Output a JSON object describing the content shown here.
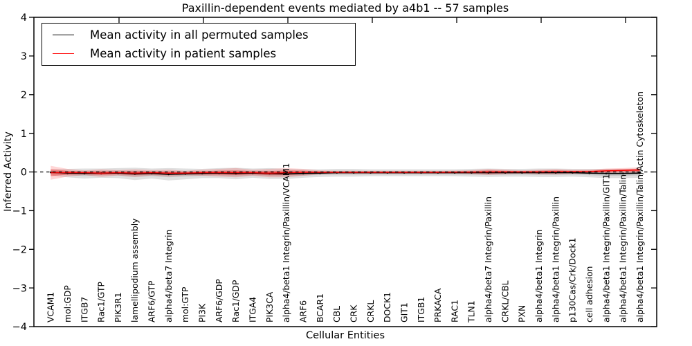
{
  "chart_data": {
    "type": "line",
    "title": "Paxillin-dependent events mediated by a4b1 -- 57 samples",
    "xlabel": "Cellular Entities",
    "ylabel": "Inferred Activity",
    "ylim": [
      -4,
      4
    ],
    "yticks": [
      4,
      3,
      2,
      1,
      0,
      -1,
      -2,
      -3,
      -4
    ],
    "grid": false,
    "zero_line_dashed": true,
    "legend_position": "upper left",
    "categories": [
      "VCAM1",
      "mol:GDP",
      "ITGB7",
      "Rac1/GTP",
      "PIK3R1",
      "lamellipodium assembly",
      "ARF6/GTP",
      "alpha4/beta7 Integrin",
      "mol:GTP",
      "PI3K",
      "ARF6/GDP",
      "Rac1/GDP",
      "ITGA4",
      "PIK3CA",
      "alpha4/beta1 Integrin/Paxillin/VCAM1",
      "ARF6",
      "BCAR1",
      "CBL",
      "CRK",
      "CRKL",
      "DOCK1",
      "GIT1",
      "ITGB1",
      "PRKACA",
      "RAC1",
      "TLN1",
      "alpha4/beta7 Integrin/Paxillin",
      "CRKL/CBL",
      "PXN",
      "alpha4/beta1 Integrin",
      "alpha4/beta1 Integrin/Paxillin",
      "p130Cas/Crk/Dock1",
      "cell adhesion",
      "alpha4/beta1 Integrin/Paxillin/GIT1",
      "alpha4/beta1 Integrin/Paxillin/Talin",
      "alpha4/beta1 Integrin/Paxillin/Talin/Actin Cytoskeleton"
    ],
    "series": [
      {
        "name": "Mean activity in all permuted samples",
        "color": "#000000",
        "values": [
          -0.01,
          -0.03,
          -0.04,
          -0.03,
          -0.03,
          -0.05,
          -0.04,
          -0.06,
          -0.05,
          -0.04,
          -0.03,
          -0.04,
          -0.03,
          -0.04,
          -0.05,
          -0.04,
          -0.03,
          -0.02,
          -0.02,
          -0.02,
          -0.02,
          -0.02,
          -0.02,
          -0.02,
          -0.02,
          -0.02,
          -0.02,
          -0.02,
          -0.02,
          -0.02,
          -0.02,
          -0.02,
          -0.03,
          -0.04,
          -0.04,
          -0.03
        ],
        "band_halfwidth": [
          0.08,
          0.11,
          0.13,
          0.12,
          0.13,
          0.16,
          0.13,
          0.16,
          0.14,
          0.12,
          0.13,
          0.15,
          0.12,
          0.14,
          0.13,
          0.11,
          0.1,
          0.1,
          0.1,
          0.09,
          0.09,
          0.09,
          0.09,
          0.09,
          0.09,
          0.1,
          0.11,
          0.1,
          0.1,
          0.11,
          0.11,
          0.1,
          0.11,
          0.12,
          0.12,
          0.12
        ]
      },
      {
        "name": "Mean activity in patient samples",
        "color": "#ff0000",
        "values": [
          -0.02,
          -0.02,
          -0.02,
          -0.03,
          -0.02,
          -0.03,
          -0.02,
          -0.03,
          -0.03,
          -0.02,
          -0.02,
          -0.02,
          -0.02,
          -0.03,
          -0.02,
          -0.01,
          -0.01,
          -0.01,
          -0.01,
          -0.01,
          -0.01,
          -0.01,
          -0.01,
          -0.01,
          -0.005,
          -0.005,
          0.0,
          0.0,
          0.0,
          0.0,
          0.005,
          0.005,
          0.01,
          0.03,
          0.04,
          0.05
        ],
        "band_halfwidth": [
          0.18,
          0.1,
          0.06,
          0.1,
          0.07,
          0.1,
          0.07,
          0.09,
          0.06,
          0.08,
          0.1,
          0.12,
          0.08,
          0.11,
          0.12,
          0.09,
          0.05,
          0.04,
          0.04,
          0.04,
          0.04,
          0.04,
          0.04,
          0.04,
          0.04,
          0.05,
          0.08,
          0.06,
          0.04,
          0.06,
          0.07,
          0.05,
          0.05,
          0.06,
          0.06,
          0.07
        ]
      }
    ]
  },
  "colors": {
    "frame": "#000000",
    "background": "#ffffff",
    "permuted_line": "#000000",
    "patient_line": "#ff0000"
  }
}
